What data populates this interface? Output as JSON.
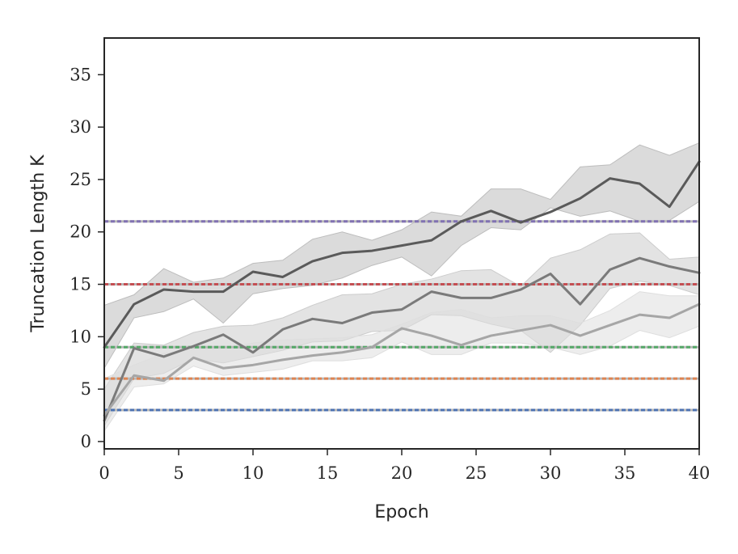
{
  "chart_data": {
    "type": "line",
    "title": "",
    "xlabel": "Epoch",
    "ylabel": "Truncation Length K",
    "xlim": [
      0,
      40
    ],
    "ylim": [
      -0.7,
      38.5
    ],
    "xticks": [
      0,
      5,
      10,
      15,
      20,
      25,
      30,
      35,
      40
    ],
    "yticks": [
      0,
      5,
      10,
      15,
      20,
      25,
      30,
      35
    ],
    "grid": false,
    "legend": "none",
    "x": [
      0,
      2,
      4,
      6,
      8,
      10,
      12,
      14,
      16,
      18,
      20,
      22,
      24,
      26,
      28,
      30,
      32,
      34,
      36,
      38,
      40
    ],
    "series": [
      {
        "color": "#5a5a5a",
        "band_color": "#bdbdbd",
        "mean": [
          9.0,
          13.1,
          14.5,
          14.3,
          14.3,
          16.2,
          15.7,
          17.2,
          18.0,
          18.2,
          18.7,
          19.2,
          21.0,
          22.0,
          20.9,
          21.9,
          23.2,
          25.1,
          24.6,
          22.4,
          26.7
        ],
        "upper": [
          13.0,
          14.0,
          16.5,
          15.2,
          15.6,
          17.0,
          17.3,
          19.3,
          20.0,
          19.2,
          20.2,
          21.9,
          21.5,
          24.1,
          24.1,
          23.1,
          26.2,
          26.4,
          28.3,
          27.3,
          28.5
        ],
        "lower": [
          7.0,
          11.8,
          12.4,
          13.6,
          11.3,
          14.1,
          14.6,
          14.9,
          15.6,
          16.8,
          17.6,
          15.8,
          18.7,
          20.4,
          20.2,
          22.3,
          21.5,
          22.0,
          21.0,
          21.1,
          22.9
        ]
      },
      {
        "color": "#7a7a7a",
        "band_color": "#cccccc",
        "mean": [
          2.0,
          8.9,
          8.1,
          9.1,
          10.2,
          8.5,
          10.7,
          11.7,
          11.3,
          12.3,
          12.6,
          14.3,
          13.7,
          13.7,
          14.5,
          16.0,
          13.1,
          16.4,
          17.5,
          16.7,
          16.1
        ],
        "upper": [
          5.0,
          9.4,
          9.2,
          10.4,
          11.0,
          11.1,
          11.8,
          13.0,
          14.0,
          14.1,
          15.0,
          15.5,
          16.3,
          16.4,
          14.8,
          17.5,
          18.3,
          19.8,
          19.9,
          17.4,
          17.6
        ],
        "lower": [
          1.5,
          6.0,
          6.5,
          7.9,
          7.5,
          8.1,
          8.7,
          9.5,
          9.6,
          10.5,
          10.6,
          12.1,
          12.0,
          11.2,
          10.6,
          8.5,
          11.1,
          14.6,
          15.3,
          14.9,
          14.0
        ]
      },
      {
        "color": "#a6a6a6",
        "band_color": "#dedede",
        "mean": [
          2.5,
          6.3,
          5.8,
          8.0,
          7.0,
          7.3,
          7.8,
          8.2,
          8.5,
          9.0,
          10.8,
          10.1,
          9.2,
          10.1,
          10.6,
          11.1,
          10.1,
          11.1,
          12.1,
          11.8,
          13.1
        ],
        "upper": [
          6.0,
          7.3,
          8.4,
          8.8,
          8.9,
          9.4,
          9.7,
          9.8,
          9.9,
          10.2,
          11.2,
          12.3,
          12.6,
          11.8,
          12.0,
          12.0,
          11.3,
          12.5,
          14.3,
          13.9,
          13.9
        ],
        "lower": [
          1.0,
          5.2,
          5.5,
          7.2,
          6.3,
          6.6,
          6.9,
          7.7,
          7.7,
          8.0,
          9.5,
          8.3,
          8.3,
          9.4,
          9.4,
          9.0,
          8.3,
          9.1,
          10.6,
          9.9,
          11.0
        ]
      }
    ],
    "reference_lines": [
      {
        "y": 21,
        "color": "#8172b2"
      },
      {
        "y": 15,
        "color": "#c44e52"
      },
      {
        "y": 9,
        "color": "#55a868"
      },
      {
        "y": 6,
        "color": "#dd8452"
      },
      {
        "y": 3,
        "color": "#4c72b0"
      }
    ]
  }
}
